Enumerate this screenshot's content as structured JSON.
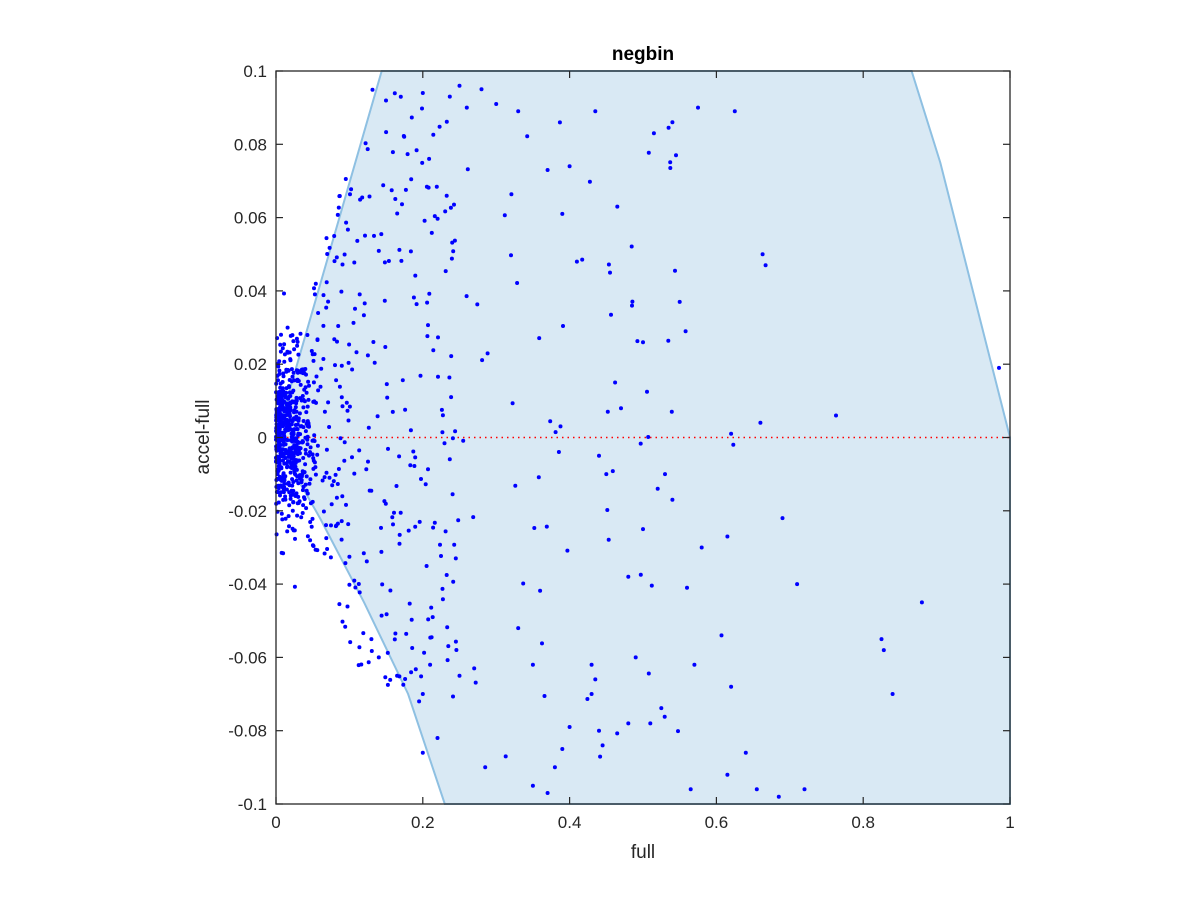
{
  "chart_data": {
    "type": "scatter",
    "title": "negbin",
    "xlabel": "full",
    "ylabel": "accel-full",
    "xlim": [
      0,
      1
    ],
    "ylim": [
      -0.1,
      0.1
    ],
    "xticks": [
      "0",
      "0.2",
      "0.4",
      "0.6",
      "0.8",
      "1"
    ],
    "yticks": [
      "-0.1",
      "-0.08",
      "-0.06",
      "-0.04",
      "-0.02",
      "0",
      "0.02",
      "0.04",
      "0.06",
      "0.08",
      "0.1"
    ],
    "grid": false,
    "colors": {
      "points": "#0000ff",
      "region_fill": "#d9e9f4",
      "region_edge": "#8ec0e2",
      "zero_line": "#ff0000",
      "axes": "#262626"
    },
    "region": [
      [
        0,
        0
      ],
      [
        0.144,
        0.1
      ],
      [
        0.866,
        0.1
      ],
      [
        0.905,
        0.075
      ],
      [
        1.0,
        0.0
      ],
      [
        1.0,
        -0.1
      ],
      [
        0.23,
        -0.1
      ],
      [
        0.18,
        -0.07
      ],
      [
        0.12,
        -0.045
      ],
      [
        0.06,
        -0.022
      ],
      [
        0.02,
        -0.008
      ]
    ],
    "zero_line": {
      "y": 0,
      "style": "dotted"
    },
    "highlighted_points": [
      [
        0.28,
        0.095
      ],
      [
        0.2,
        0.094
      ],
      [
        0.25,
        0.096
      ],
      [
        0.26,
        0.09
      ],
      [
        0.3,
        0.091
      ],
      [
        0.33,
        0.089
      ],
      [
        0.17,
        0.093
      ],
      [
        0.435,
        0.089
      ],
      [
        0.575,
        0.09
      ],
      [
        0.625,
        0.089
      ],
      [
        0.54,
        0.086
      ],
      [
        0.545,
        0.077
      ],
      [
        0.37,
        0.073
      ],
      [
        0.4,
        0.074
      ],
      [
        0.465,
        0.063
      ],
      [
        0.39,
        0.061
      ],
      [
        0.663,
        0.05
      ],
      [
        0.667,
        0.047
      ],
      [
        0.455,
        0.045
      ],
      [
        0.41,
        0.048
      ],
      [
        0.55,
        0.037
      ],
      [
        0.485,
        0.036
      ],
      [
        0.5,
        0.026
      ],
      [
        0.558,
        0.029
      ],
      [
        0.985,
        0.019
      ],
      [
        0.763,
        0.006
      ],
      [
        0.66,
        0.004
      ],
      [
        0.462,
        0.015
      ],
      [
        0.452,
        0.007
      ],
      [
        0.47,
        0.008
      ],
      [
        0.62,
        0.001
      ],
      [
        0.623,
        -0.002
      ],
      [
        0.44,
        -0.005
      ],
      [
        0.45,
        -0.01
      ],
      [
        0.52,
        -0.014
      ],
      [
        0.53,
        -0.01
      ],
      [
        0.54,
        -0.017
      ],
      [
        0.69,
        -0.022
      ],
      [
        0.5,
        -0.025
      ],
      [
        0.58,
        -0.03
      ],
      [
        0.615,
        -0.027
      ],
      [
        0.71,
        -0.04
      ],
      [
        0.88,
        -0.045
      ],
      [
        0.56,
        -0.041
      ],
      [
        0.48,
        -0.038
      ],
      [
        0.607,
        -0.054
      ],
      [
        0.825,
        -0.055
      ],
      [
        0.828,
        -0.058
      ],
      [
        0.62,
        -0.068
      ],
      [
        0.84,
        -0.07
      ],
      [
        0.57,
        -0.062
      ],
      [
        0.49,
        -0.06
      ],
      [
        0.43,
        -0.062
      ],
      [
        0.435,
        -0.066
      ],
      [
        0.43,
        -0.07
      ],
      [
        0.48,
        -0.078
      ],
      [
        0.51,
        -0.078
      ],
      [
        0.44,
        -0.08
      ],
      [
        0.445,
        -0.084
      ],
      [
        0.4,
        -0.079
      ],
      [
        0.39,
        -0.085
      ],
      [
        0.38,
        -0.09
      ],
      [
        0.37,
        -0.097
      ],
      [
        0.313,
        -0.087
      ],
      [
        0.35,
        -0.095
      ],
      [
        0.285,
        -0.09
      ],
      [
        0.64,
        -0.086
      ],
      [
        0.565,
        -0.096
      ],
      [
        0.615,
        -0.092
      ],
      [
        0.655,
        -0.096
      ],
      [
        0.685,
        -0.098
      ],
      [
        0.72,
        -0.096
      ],
      [
        0.2,
        -0.086
      ],
      [
        0.22,
        -0.082
      ],
      [
        0.2,
        -0.07
      ],
      [
        0.195,
        -0.072
      ],
      [
        0.14,
        -0.06
      ],
      [
        0.13,
        -0.055
      ],
      [
        0.165,
        -0.065
      ],
      [
        0.21,
        -0.062
      ],
      [
        0.25,
        -0.065
      ],
      [
        0.27,
        -0.063
      ],
      [
        0.33,
        -0.052
      ],
      [
        0.35,
        -0.062
      ]
    ]
  }
}
